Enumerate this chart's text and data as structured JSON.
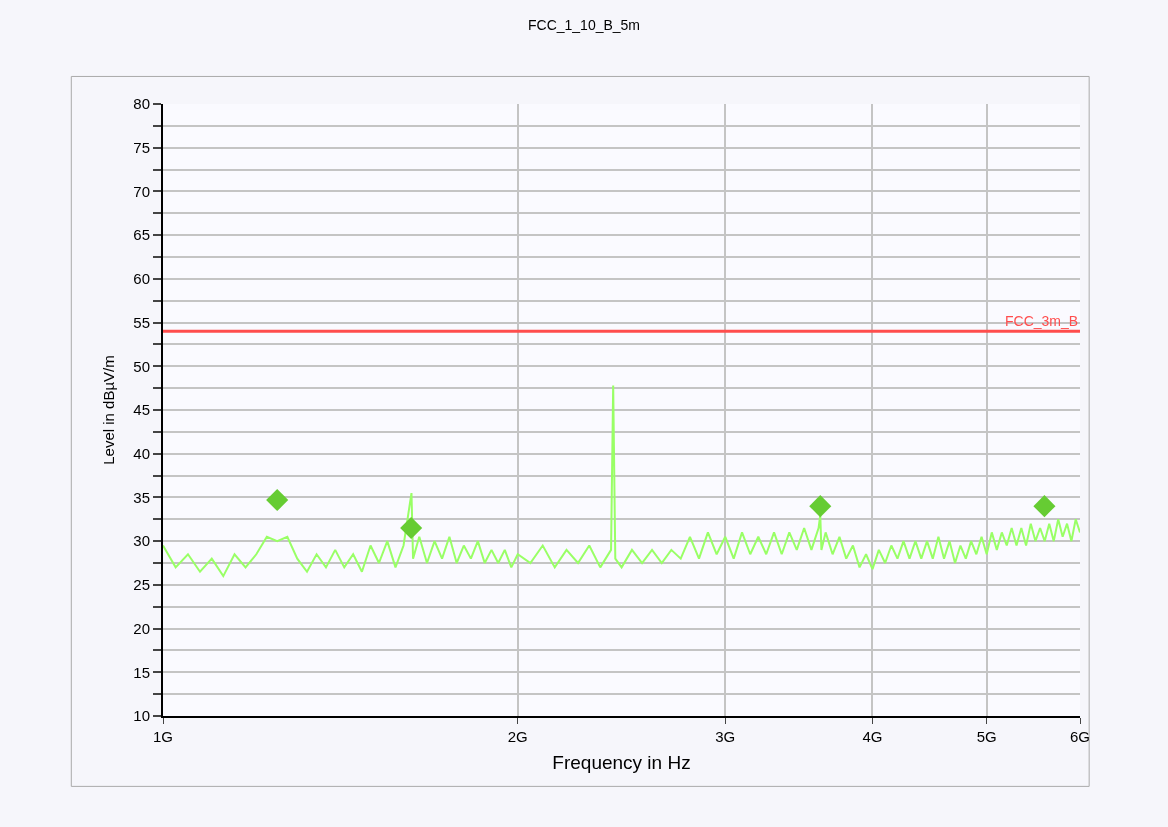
{
  "chart_data": {
    "type": "line",
    "title": "FCC_1_10_B_5m",
    "xlabel": "Frequency in Hz",
    "ylabel": "Level in dBµV/m",
    "log": "x",
    "grid": true,
    "xlim": [
      1,
      6
    ],
    "xticks": [
      {
        "value": 1,
        "label": "1G"
      },
      {
        "value": 2,
        "label": "2G"
      },
      {
        "value": 3,
        "label": "3G"
      },
      {
        "value": 4,
        "label": "4G"
      },
      {
        "value": 5,
        "label": "5G"
      },
      {
        "value": 6,
        "label": "6G"
      }
    ],
    "ylim": [
      10,
      80
    ],
    "yticks": [
      10,
      {
        "value": 12.5,
        "label": null
      },
      15,
      {
        "value": 17.5,
        "label": null
      },
      20,
      {
        "value": 22.5,
        "label": null
      },
      25,
      {
        "value": 27.5,
        "label": null
      },
      30,
      {
        "value": 32.5,
        "label": null
      },
      35,
      {
        "value": 37.5,
        "label": null
      },
      40,
      {
        "value": 42.5,
        "label": null
      },
      45,
      {
        "value": 47.5,
        "label": null
      },
      50,
      {
        "value": 52.5,
        "label": null
      },
      55,
      {
        "value": 57.5,
        "label": null
      },
      60,
      {
        "value": 62.5,
        "label": null
      },
      65,
      {
        "value": 67.5,
        "label": null
      },
      70,
      {
        "value": 72.5,
        "label": null
      },
      75,
      {
        "value": 77.5,
        "label": null
      },
      80
    ],
    "ref_lines": [
      {
        "axis": "y",
        "value": 54,
        "label": "FCC_3m_B",
        "color": "#ff4d4d",
        "line_style": "solid"
      }
    ],
    "series": [
      {
        "color": "#99ff66",
        "marker": "none",
        "line_style": "solid",
        "x": [
          1.0,
          1.025,
          1.05,
          1.075,
          1.1,
          1.125,
          1.15,
          1.175,
          1.2,
          1.225,
          1.25,
          1.275,
          1.3,
          1.325,
          1.35,
          1.375,
          1.4,
          1.425,
          1.45,
          1.475,
          1.5,
          1.525,
          1.55,
          1.575,
          1.6,
          1.625,
          1.63,
          1.65,
          1.675,
          1.7,
          1.725,
          1.75,
          1.775,
          1.8,
          1.825,
          1.85,
          1.875,
          1.9,
          1.925,
          1.95,
          1.975,
          2.0,
          2.05,
          2.1,
          2.15,
          2.2,
          2.25,
          2.3,
          2.35,
          2.4,
          2.41,
          2.42,
          2.45,
          2.5,
          2.55,
          2.6,
          2.65,
          2.7,
          2.75,
          2.8,
          2.85,
          2.9,
          2.95,
          3.0,
          3.05,
          3.1,
          3.15,
          3.2,
          3.25,
          3.3,
          3.35,
          3.4,
          3.45,
          3.5,
          3.55,
          3.6,
          3.612,
          3.62,
          3.65,
          3.7,
          3.75,
          3.8,
          3.85,
          3.9,
          3.95,
          4.0,
          4.05,
          4.1,
          4.15,
          4.2,
          4.25,
          4.3,
          4.35,
          4.4,
          4.45,
          4.5,
          4.55,
          4.6,
          4.65,
          4.7,
          4.75,
          4.8,
          4.85,
          4.9,
          4.95,
          5.0,
          5.05,
          5.1,
          5.15,
          5.2,
          5.25,
          5.3,
          5.35,
          5.4,
          5.45,
          5.5,
          5.55,
          5.6,
          5.65,
          5.7,
          5.75,
          5.8,
          5.85,
          5.9,
          5.95,
          6.0
        ],
        "values": [
          29.5,
          27.0,
          28.5,
          26.5,
          28.0,
          26.0,
          28.5,
          27.0,
          28.5,
          30.5,
          30.0,
          30.5,
          28.0,
          26.5,
          28.5,
          27.0,
          29.0,
          27.0,
          28.5,
          26.5,
          29.5,
          27.5,
          30.0,
          27.0,
          29.5,
          35.5,
          28.0,
          30.5,
          27.5,
          30.0,
          28.0,
          30.5,
          27.5,
          29.5,
          28.0,
          30.0,
          27.5,
          29.0,
          27.5,
          29.0,
          27.0,
          28.5,
          27.5,
          29.5,
          27.0,
          29.0,
          27.5,
          29.5,
          27.0,
          29.0,
          47.8,
          28.0,
          27.0,
          29.0,
          27.5,
          29.0,
          27.5,
          29.0,
          28.0,
          30.5,
          28.0,
          31.0,
          28.5,
          30.5,
          28.0,
          31.0,
          28.5,
          30.5,
          28.5,
          31.0,
          28.5,
          31.0,
          29.0,
          31.5,
          29.0,
          31.5,
          33.0,
          29.0,
          31.0,
          28.5,
          30.5,
          28.0,
          29.5,
          27.0,
          28.5,
          26.8,
          29.0,
          27.5,
          29.5,
          28.0,
          30.0,
          28.0,
          30.0,
          28.0,
          30.0,
          28.0,
          30.5,
          28.0,
          30.0,
          27.5,
          29.5,
          28.0,
          30.0,
          28.5,
          30.5,
          28.5,
          31.0,
          29.0,
          31.0,
          29.5,
          31.5,
          29.5,
          31.5,
          29.5,
          32.0,
          30.0,
          31.5,
          30.0,
          32.0,
          30.0,
          32.5,
          30.5,
          32.0,
          30.0,
          32.5,
          31.0
        ]
      },
      {
        "type": "scatter",
        "color": "#66cc33",
        "marker": "diamond",
        "x": [
          1.25,
          1.624,
          3.612,
          5.597
        ],
        "values": [
          34.7,
          31.5,
          34.0,
          34.0
        ]
      }
    ]
  }
}
